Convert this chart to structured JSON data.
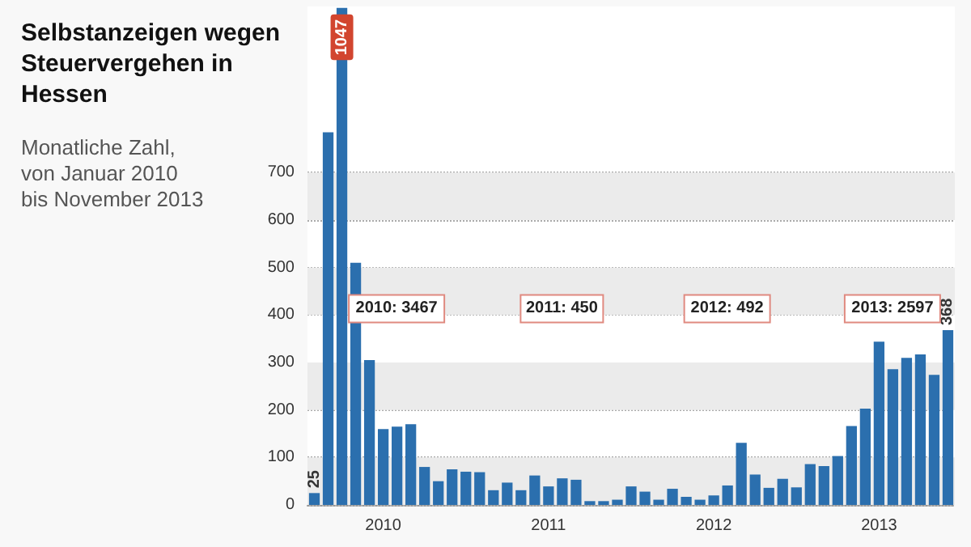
{
  "chart_data": {
    "type": "bar",
    "title": "Selbstanzeigen wegen Steuervergehen in Hessen",
    "subtitle": "Monatliche Zahl, von Januar 2010 bis November 2013",
    "categories": [
      null,
      null,
      null,
      null,
      null,
      "2010",
      null,
      null,
      null,
      null,
      null,
      null,
      null,
      null,
      null,
      null,
      null,
      "2011",
      null,
      null,
      null,
      null,
      null,
      null,
      null,
      null,
      null,
      null,
      null,
      "2012",
      null,
      null,
      null,
      null,
      null,
      null,
      null,
      null,
      null,
      null,
      null,
      "2013",
      null,
      null,
      null,
      null,
      null
    ],
    "values": [
      25,
      785,
      1047,
      510,
      305,
      160,
      165,
      170,
      80,
      50,
      75,
      70,
      69,
      31,
      47,
      31,
      62,
      39,
      56,
      53,
      8,
      8,
      11,
      39,
      28,
      11,
      34,
      17,
      11,
      20,
      41,
      131,
      64,
      36,
      55,
      37,
      86,
      82,
      103,
      166,
      203,
      344,
      286,
      310,
      317,
      274,
      368
    ],
    "value_labels": [
      "25",
      null,
      "1047",
      null,
      null,
      null,
      null,
      null,
      null,
      null,
      null,
      null,
      null,
      null,
      null,
      null,
      null,
      null,
      null,
      null,
      null,
      null,
      null,
      null,
      null,
      null,
      null,
      null,
      null,
      null,
      null,
      null,
      null,
      null,
      null,
      null,
      null,
      null,
      null,
      null,
      null,
      null,
      null,
      null,
      null,
      null,
      "368"
    ],
    "color": "#2b6fae",
    "ylim": [
      0,
      1050
    ],
    "yticks": [
      0,
      100,
      200,
      300,
      400,
      500,
      600,
      700
    ],
    "grid": "y",
    "bands": [
      {
        "axis": "y",
        "from": 0,
        "to": 100,
        "color": "#ebebeb"
      },
      {
        "axis": "y",
        "from": 200,
        "to": 300,
        "color": "#ebebeb"
      },
      {
        "axis": "y",
        "from": 400,
        "to": 500,
        "color": "#ebebeb"
      },
      {
        "axis": "y",
        "from": 600,
        "to": 700,
        "color": "#ebebeb"
      }
    ],
    "annotations": [
      "2010: 3467",
      "2011: 450",
      "2012: 492",
      "2013: 2597"
    ]
  }
}
